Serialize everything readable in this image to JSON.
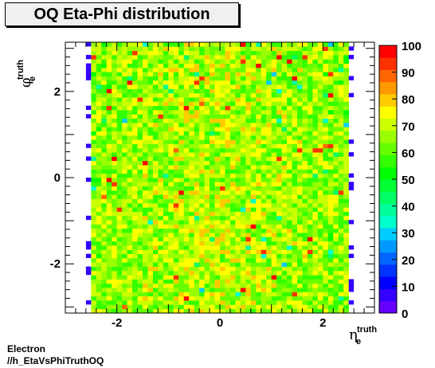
{
  "chart_data": {
    "type": "heatmap",
    "title": "OQ Eta-Phi distribution",
    "xlabel": "η",
    "xlabel_sup": "truth",
    "xlabel_sub": "e",
    "ylabel": "φ",
    "ylabel_sup": "truth",
    "ylabel_sub": "e",
    "xlim": [
      -3.0,
      3.0
    ],
    "ylim": [
      -3.1416,
      3.1416
    ],
    "x_ticks": [
      -2,
      0,
      2
    ],
    "x_tick_labels": [
      "-2",
      "0",
      "2"
    ],
    "y_ticks": [
      -2,
      0,
      2
    ],
    "y_tick_labels": [
      "-2",
      "0",
      "2"
    ],
    "z_range": [
      0,
      100
    ],
    "z_ticks": [
      0,
      10,
      20,
      30,
      40,
      50,
      60,
      70,
      80,
      90,
      100
    ],
    "z_tick_labels": [
      "0",
      "10",
      "20",
      "30",
      "40",
      "50",
      "60",
      "70",
      "80",
      "90",
      "100"
    ],
    "palette": [
      "#6600ff",
      "#3300ff",
      "#0000ff",
      "#0033ff",
      "#0066ff",
      "#0099ff",
      "#00ccff",
      "#00ffcc",
      "#00ff99",
      "#00ff66",
      "#00ff33",
      "#00ff00",
      "#33ff00",
      "#66ff00",
      "#99ff00",
      "#ccff00",
      "#ffff00",
      "#ffcc00",
      "#ff9900",
      "#ff6600",
      "#ff3300",
      "#ff0000"
    ],
    "eta_bin_edges": [
      -2.5,
      2.5
    ],
    "n_eta_bins": 50,
    "n_phi_bins": 64,
    "typical_z_range": [
      45,
      80
    ],
    "edge_bins": {
      "eta_low": [
        -2.6,
        -2.5
      ],
      "eta_high": [
        2.5,
        2.6
      ],
      "z": 5
    }
  },
  "footer": {
    "line1": "Electron",
    "line2": "//h_EtaVsPhiTruthOQ"
  }
}
